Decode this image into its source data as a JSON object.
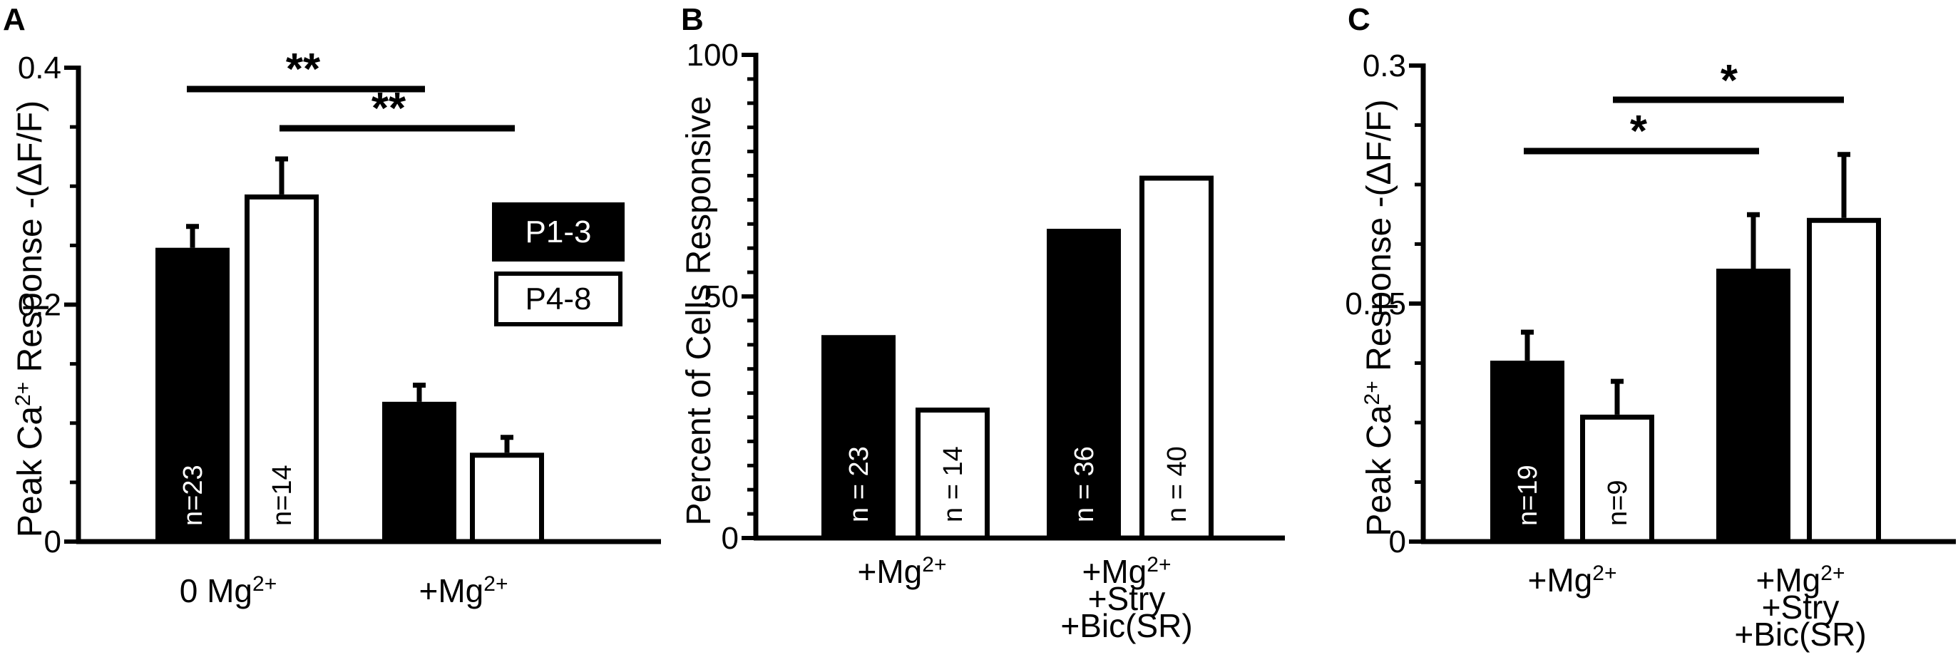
{
  "colors": {
    "filled": "#000000",
    "open": "#ffffff",
    "stroke": "#000000"
  },
  "legend": {
    "items": [
      "P1-3",
      "P4-8"
    ]
  },
  "chart_data": [
    {
      "panel": "A",
      "type": "bar",
      "ylabel": "Peak Ca2+ Response -(ΔF/F)",
      "ylim": [
        0,
        0.4
      ],
      "yticks": [
        "0",
        "0.2",
        "0.4"
      ],
      "categories": [
        "0 Mg2+",
        "+Mg2+"
      ],
      "series": [
        {
          "name": "P1-3",
          "values": [
            0.248,
            0.118
          ],
          "errors": [
            0.018,
            0.014
          ],
          "n": [
            "n=23",
            ""
          ]
        },
        {
          "name": "P4-8",
          "values": [
            0.293,
            0.075
          ],
          "errors": [
            0.03,
            0.013
          ],
          "n": [
            "n=14",
            ""
          ]
        }
      ],
      "significance": [
        {
          "label": "**",
          "from": "0 Mg2+ / P1-3",
          "to": "+Mg2+ / P1-3"
        },
        {
          "label": "**",
          "from": "0 Mg2+ / P4-8",
          "to": "+Mg2+ / P4-8"
        }
      ]
    },
    {
      "panel": "B",
      "type": "bar",
      "ylabel": "Percent of Cells Responsive",
      "ylim": [
        0,
        100
      ],
      "yticks": [
        "0",
        "50",
        "100"
      ],
      "categories": [
        "+Mg2+",
        "+Mg2+ +Stry +Bic(SR)"
      ],
      "series": [
        {
          "name": "P1-3",
          "values": [
            42,
            64
          ],
          "n": [
            "n = 23",
            "n = 36"
          ]
        },
        {
          "name": "P4-8",
          "values": [
            27,
            75
          ],
          "n": [
            "n = 14",
            "n = 40"
          ]
        }
      ]
    },
    {
      "panel": "C",
      "type": "bar",
      "ylabel": "Peak Ca2+ Response -(ΔF/F)",
      "ylim": [
        0,
        0.3
      ],
      "yticks": [
        "0",
        "0.15",
        "0.3"
      ],
      "categories": [
        "+Mg2+",
        "+Mg2+ +Stry +Bic(SR)"
      ],
      "series": [
        {
          "name": "P1-3",
          "values": [
            0.114,
            0.172
          ],
          "errors": [
            0.018,
            0.034
          ],
          "n": [
            "n=19",
            ""
          ]
        },
        {
          "name": "P4-8",
          "values": [
            0.08,
            0.204
          ],
          "errors": [
            0.021,
            0.04
          ],
          "n": [
            "n=9",
            ""
          ]
        }
      ],
      "significance": [
        {
          "label": "*",
          "from": "+Mg2+ / P1-3",
          "to": "+Stry / P1-3"
        },
        {
          "label": "*",
          "from": "+Mg2+ / P4-8",
          "to": "+Stry / P4-8"
        }
      ]
    }
  ]
}
